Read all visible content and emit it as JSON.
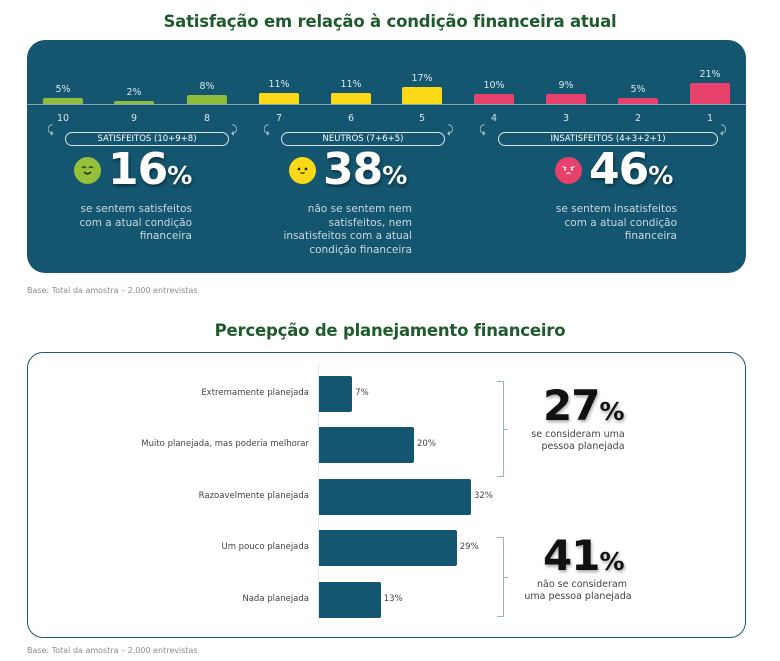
{
  "chart_data": [
    {
      "type": "bar",
      "title": "Satisfação em relação à condição financeira atual",
      "categories": [
        "10",
        "9",
        "8",
        "7",
        "6",
        "5",
        "4",
        "3",
        "2",
        "1"
      ],
      "values": [
        5,
        2,
        8,
        11,
        11,
        17,
        10,
        9,
        5,
        21
      ],
      "value_labels": [
        "5%",
        "2%",
        "8%",
        "11%",
        "11%",
        "17%",
        "10%",
        "9%",
        "5%",
        "21%"
      ],
      "ylim": [
        0,
        25
      ],
      "groups": [
        {
          "name": "satisfeitos",
          "label": "SATISFEITOS (10+9+8)",
          "categories": [
            "10",
            "9",
            "8"
          ],
          "color": "#8fbc3a",
          "face_color": "#97c03a",
          "mood": "happy",
          "total_num": "16",
          "total_pct": "%",
          "desc": [
            "se sentem satisfeitos",
            "com a atual condição",
            "financeira"
          ]
        },
        {
          "name": "neutros",
          "label": "NEUTROS (7+6+5)",
          "categories": [
            "7",
            "6",
            "5"
          ],
          "color": "#fcd917",
          "face_color": "#fcd917",
          "mood": "neutral",
          "total_num": "38",
          "total_pct": "%",
          "desc": [
            "não se sentem nem",
            "satisfeitos, nem",
            "insatisfeitos com a atual",
            "condição financeira"
          ]
        },
        {
          "name": "insatisfeitos",
          "label": "INSATISFEITOS (4+3+2+1)",
          "categories": [
            "4",
            "3",
            "2",
            "1"
          ],
          "color": "#e7406b",
          "face_color": "#e7406b",
          "mood": "angry",
          "total_num": "46",
          "total_pct": "%",
          "desc": [
            "se sentem insatisfeitos",
            "com a atual condição",
            "financeira"
          ]
        }
      ],
      "base_note": "Base: Total da amostra – 2.000 entrevistas"
    },
    {
      "type": "bar",
      "orientation": "horizontal",
      "title": "Percepção de planejamento financeiro",
      "categories": [
        "Extremamente planejada",
        "Muito planejada, mas poderia melhorar",
        "Razoavelmente planejada",
        "Um pouco planejada",
        "Nada planejada"
      ],
      "values": [
        7,
        20,
        32,
        29,
        13
      ],
      "value_labels": [
        "7%",
        "20%",
        "32%",
        "29%",
        "13%"
      ],
      "xlim": [
        0,
        35
      ],
      "color": "#14566f",
      "callouts": [
        {
          "num": "27",
          "pct": "%",
          "desc": [
            "se consideram uma",
            "pessoa planejada"
          ],
          "categories": [
            "Extremamente planejada",
            "Muito planejada, mas poderia melhorar"
          ]
        },
        {
          "num": "41",
          "pct": "%",
          "desc": [
            "não se consideram",
            "uma pessoa planejada"
          ],
          "categories": [
            "Um pouco planejada",
            "Nada planejada"
          ]
        }
      ],
      "base_note": "Base: Total da amostra – 2.000 entrevistas"
    }
  ]
}
